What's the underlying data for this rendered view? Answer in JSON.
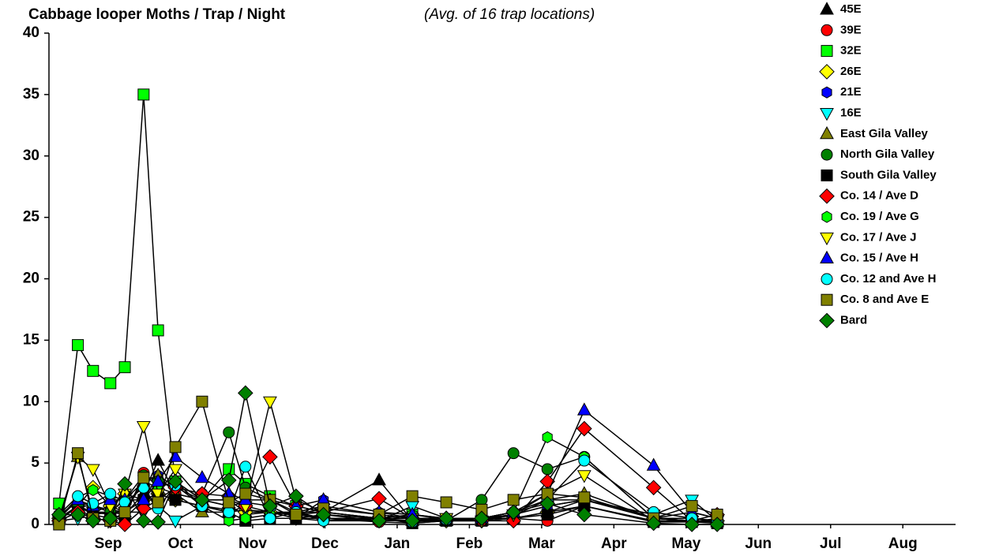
{
  "chart_data": {
    "type": "line",
    "title": "Cabbage looper Moths / Trap / Night",
    "subtitle": "(Avg. of 16 trap locations)",
    "x": [
      0.82,
      1.08,
      1.29,
      1.53,
      1.73,
      1.99,
      2.19,
      2.43,
      2.8,
      3.17,
      3.4,
      3.74,
      4.1,
      4.48,
      5.25,
      5.71,
      6.18,
      6.67,
      7.11,
      7.58,
      8.09,
      9.05,
      9.58,
      9.93
    ],
    "xlim": [
      0.68,
      13.23
    ],
    "xticks": [
      {
        "value": 1.5,
        "label": "Sep"
      },
      {
        "value": 2.5,
        "label": "Oct"
      },
      {
        "value": 3.5,
        "label": "Nov"
      },
      {
        "value": 4.5,
        "label": "Dec"
      },
      {
        "value": 5.5,
        "label": "Jan"
      },
      {
        "value": 6.5,
        "label": "Feb"
      },
      {
        "value": 7.5,
        "label": "Mar"
      },
      {
        "value": 8.5,
        "label": "Apr"
      },
      {
        "value": 9.5,
        "label": "May"
      },
      {
        "value": 10.5,
        "label": "Jun"
      },
      {
        "value": 11.5,
        "label": "Jul"
      },
      {
        "value": 12.5,
        "label": "Aug"
      }
    ],
    "ylim": [
      0,
      40
    ],
    "yticks": [
      0,
      5,
      10,
      15,
      20,
      25,
      30,
      35,
      40
    ],
    "grid": false,
    "legend": "right",
    "series": [
      {
        "name": "45E",
        "color": "#000000",
        "marker": "triangle-up",
        "values": [
          0.5,
          1.5,
          0.8,
          1,
          0.8,
          2.5,
          5.2,
          2.5,
          2,
          2,
          1,
          1,
          1,
          1,
          3.6,
          0.3,
          0.3,
          0.3,
          0.5,
          1,
          1.5,
          0.3,
          0.3,
          0.2
        ]
      },
      {
        "name": "39E",
        "color": "#ff0000",
        "marker": "circle",
        "values": [
          0.3,
          1.5,
          1,
          0.8,
          0.5,
          4.2,
          3,
          2.5,
          2,
          1.5,
          0.8,
          1,
          0.5,
          0.5,
          0.2,
          0.1,
          0.3,
          0.3,
          0.5,
          0.3,
          1.5,
          0.3,
          0.2,
          0.5
        ]
      },
      {
        "name": "32E",
        "color": "#00ff00",
        "marker": "square",
        "values": [
          1.7,
          14.6,
          12.5,
          11.5,
          12.8,
          35,
          15.8,
          3.5,
          2,
          4.5,
          3.3,
          2.3,
          1.5,
          1,
          0.5,
          0.8,
          0.4,
          0.5,
          0.7,
          2,
          2,
          0.5,
          0.3,
          0.2
        ]
      },
      {
        "name": "26E",
        "color": "#ffff00",
        "marker": "diamond",
        "values": [
          0.5,
          1.5,
          3,
          1.5,
          2.5,
          2,
          2.5,
          2,
          1.5,
          1.2,
          1,
          1,
          0.8,
          0.5,
          0.5,
          0.3,
          0.3,
          0.5,
          0.5,
          1,
          2,
          0.5,
          0.3,
          0.3
        ]
      },
      {
        "name": "21E",
        "color": "#0000ff",
        "marker": "hexagon",
        "values": [
          0.8,
          1.8,
          1.5,
          1.2,
          1,
          2,
          4,
          3,
          2,
          1.5,
          1.8,
          1.5,
          0.5,
          2,
          1,
          0.5,
          0.3,
          0.5,
          0.8,
          1.5,
          2,
          0.5,
          0.3,
          0.3
        ]
      },
      {
        "name": "16E",
        "color": "#00ffff",
        "marker": "triangle-down",
        "values": [
          0.3,
          0.5,
          1,
          1.5,
          1,
          1,
          1.5,
          0.3,
          1.5,
          1,
          1.2,
          1,
          0.5,
          0.3,
          0.3,
          1.5,
          0.5,
          0.3,
          0.8,
          1.5,
          2,
          0.8,
          2,
          0.3
        ]
      },
      {
        "name": "East Gila Valley",
        "color": "#808000",
        "marker": "triangle-up",
        "values": [
          0.5,
          5.5,
          1,
          1,
          1,
          3.5,
          4,
          2.5,
          1,
          1,
          1.5,
          1,
          0.8,
          1,
          0.5,
          0.5,
          0.3,
          0.5,
          1,
          2,
          2.5,
          0.5,
          1,
          0.5
        ]
      },
      {
        "name": "North Gila Valley",
        "color": "#008000",
        "marker": "circle",
        "values": [
          0.5,
          1.5,
          1.5,
          1,
          2,
          4,
          3.5,
          3,
          2.5,
          7.5,
          3,
          2,
          1,
          1.5,
          0.8,
          0.5,
          0.3,
          2,
          5.8,
          4.5,
          5.5,
          0.5,
          0.5,
          0.3
        ]
      },
      {
        "name": "South Gila Valley",
        "color": "#000000",
        "marker": "square",
        "values": [
          0.3,
          1,
          0.8,
          0.5,
          0.5,
          2,
          2.5,
          2,
          1.5,
          1,
          0.3,
          0.5,
          0.5,
          0.8,
          0.5,
          0.1,
          0.3,
          0.3,
          0.5,
          0.8,
          1.5,
          0.2,
          0.2,
          0.1
        ]
      },
      {
        "name": "Co. 14 / Ave D",
        "color": "#ff0000",
        "marker": "diamond",
        "values": [
          0.3,
          1,
          0.5,
          0.3,
          0,
          1.3,
          2,
          3,
          2.5,
          2.3,
          1.5,
          5.5,
          1.5,
          1,
          2.1,
          0.5,
          0.5,
          0.3,
          0.3,
          3.5,
          7.8,
          3,
          0.3,
          0.8
        ]
      },
      {
        "name": "Co. 19 / Ave G",
        "color": "#00ff00",
        "marker": "hexagon",
        "values": [
          0.5,
          2.2,
          2.8,
          2.3,
          2,
          3.5,
          3,
          3.5,
          1.5,
          0.3,
          0.5,
          0.8,
          1,
          0.5,
          0.3,
          0.8,
          0.5,
          0.5,
          1,
          7.1,
          5.5,
          0.5,
          0.3,
          0.2
        ]
      },
      {
        "name": "Co. 17 / Ave J",
        "color": "#ffff00",
        "marker": "triangle-down",
        "values": [
          0.3,
          5.5,
          4.5,
          1.5,
          2.5,
          8,
          2.5,
          4.5,
          2,
          2,
          1.5,
          10,
          2,
          1,
          0.5,
          0.5,
          0.5,
          0.3,
          0.8,
          2.5,
          4,
          0.3,
          0.3,
          0.3
        ]
      },
      {
        "name": "Co. 15 / Ave H",
        "color": "#0000ff",
        "marker": "triangle-up",
        "values": [
          0.5,
          2,
          1.5,
          2,
          2,
          2,
          3.5,
          5.5,
          3.8,
          2.5,
          2,
          2,
          1.5,
          2,
          1,
          0.8,
          0.5,
          0.5,
          1,
          2.5,
          9.3,
          4.8,
          1,
          0.5
        ]
      },
      {
        "name": "Co. 12 and Ave H",
        "color": "#00ffff",
        "marker": "circle",
        "values": [
          0.8,
          2.3,
          1.7,
          2.5,
          1.8,
          3,
          1.3,
          3.2,
          1.5,
          1,
          4.7,
          0.5,
          1,
          0.3,
          0.5,
          0.2,
          0.4,
          0.5,
          1,
          2,
          5.2,
          1,
          0.5,
          0.3
        ]
      },
      {
        "name": "Co. 8 and Ave E",
        "color": "#808000",
        "marker": "square",
        "values": [
          0,
          5.8,
          0.5,
          0.3,
          1,
          3.8,
          1.8,
          6.3,
          10,
          1.8,
          2.5,
          2,
          0.8,
          1.3,
          0.8,
          2.3,
          1.8,
          1.2,
          2,
          2.5,
          2.2,
          0.5,
          1.5,
          0.8
        ]
      },
      {
        "name": "Bard",
        "color": "#008000",
        "marker": "diamond",
        "values": [
          0.8,
          0.8,
          0.3,
          0.5,
          3.3,
          0.3,
          0.2,
          3.5,
          2,
          3.6,
          10.7,
          1.5,
          2.3,
          0.8,
          0.3,
          0.3,
          0.5,
          0.5,
          1,
          1.7,
          0.8,
          0.1,
          0,
          0
        ]
      }
    ]
  }
}
